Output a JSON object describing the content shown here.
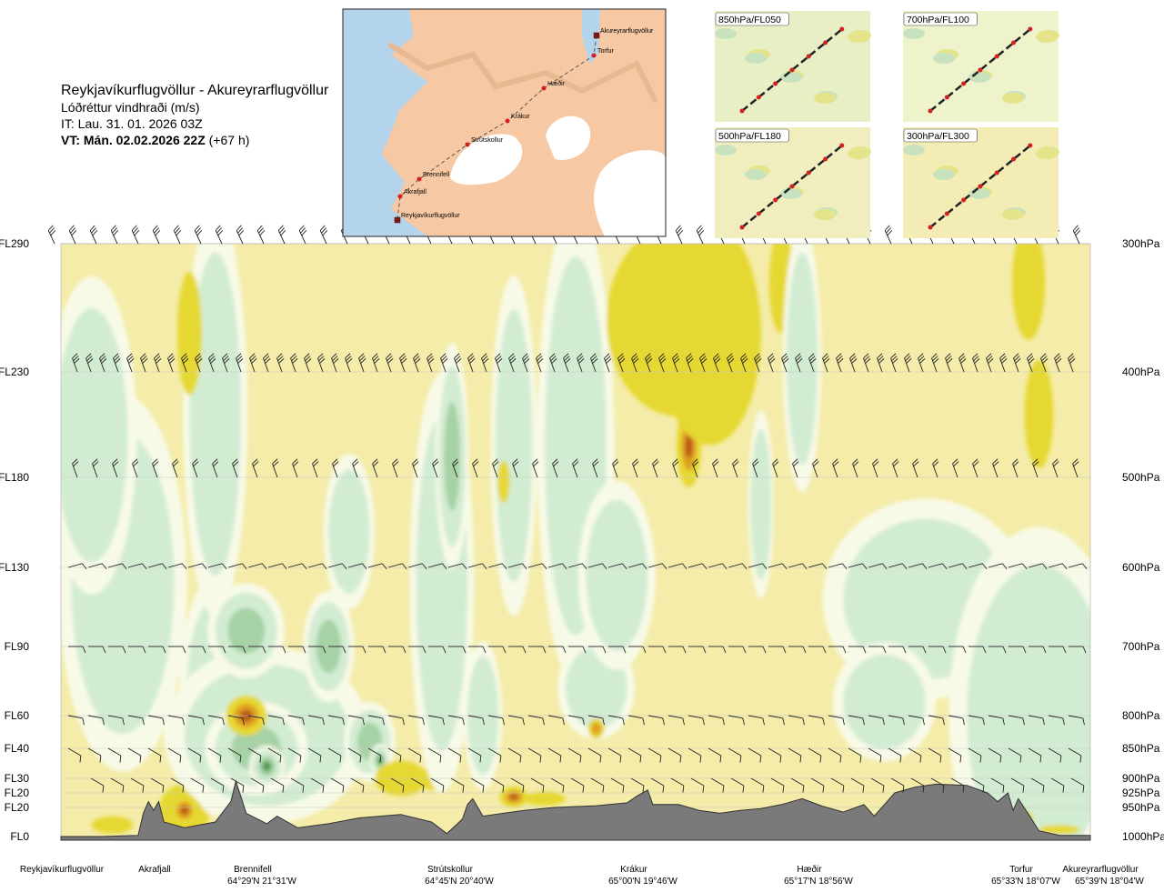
{
  "header": {
    "route": "Reykjavíkurflugvöllur - Akureyrarflugvöllur",
    "field": "Lóðréttur vindhraði (m/s)",
    "issue_time": "IT: Lau. 31. 01. 2026 03Z",
    "valid_time_label": "VT: Mán. 02.02.2026 22Z",
    "lead": "(+67 h)"
  },
  "inset_map": {
    "points": [
      "Akureyrarflugvöllur",
      "Torfur",
      "Hæðir",
      "Krákur",
      "Strútskollur",
      "Brennifell",
      "Akrafjall",
      "Reykjavíkurflugvöllur"
    ]
  },
  "small_maps": [
    {
      "label": "850hPa/FL050"
    },
    {
      "label": "700hPa/FL100"
    },
    {
      "label": "500hPa/FL180"
    },
    {
      "label": "300hPa/FL300"
    }
  ],
  "colors": {
    "background": "#f4eca8",
    "strong_up": "#e6d832",
    "very_strong_up": "#e0a020",
    "extreme_up": "#b85a1a",
    "weak_down": "#f8fae8",
    "down": "#d2ecd2",
    "strong_down": "#a6d2a6",
    "very_strong_down": "#4e9a4e",
    "terrain": "#7a7a7a"
  },
  "chart_data": {
    "type": "heatmap",
    "title": "Lóðréttur vindhraði (m/s)",
    "x_points": [
      {
        "name": "Reykjavíkurflugvöllur",
        "coord": ""
      },
      {
        "name": "Akrafjall",
        "coord": ""
      },
      {
        "name": "Brennifell",
        "coord": "64°29'N 21°31'W"
      },
      {
        "name": "Strútskollur",
        "coord": "64°45'N 20°40'W"
      },
      {
        "name": "Krákur",
        "coord": "65°00'N 19°46'W"
      },
      {
        "name": "Hæðir",
        "coord": "65°17'N 18°56'W"
      },
      {
        "name": "Torfur",
        "coord": "65°33'N 18°07'W"
      },
      {
        "name": "Akureyrarflugvöllur",
        "coord": "65°39'N 18°04'W"
      }
    ],
    "levels_left": [
      "FL290",
      "FL230",
      "FL180",
      "FL130",
      "FL90",
      "FL60",
      "FL40",
      "FL30",
      "FL20",
      "FL20",
      "FL0"
    ],
    "levels_right": [
      "300hPa",
      "400hPa",
      "500hPa",
      "600hPa",
      "700hPa",
      "800hPa",
      "850hPa",
      "900hPa",
      "925hPa",
      "950hPa",
      "1000hPa"
    ],
    "pressure_hpa": [
      300,
      400,
      500,
      600,
      700,
      800,
      850,
      900,
      925,
      950,
      1000
    ],
    "terrain_profile": [
      [
        0,
        1000
      ],
      [
        0.04,
        1000
      ],
      [
        0.075,
        998
      ],
      [
        0.08,
        960
      ],
      [
        0.085,
        940
      ],
      [
        0.09,
        955
      ],
      [
        0.095,
        940
      ],
      [
        0.1,
        975
      ],
      [
        0.12,
        985
      ],
      [
        0.15,
        975
      ],
      [
        0.165,
        940
      ],
      [
        0.17,
        905
      ],
      [
        0.18,
        960
      ],
      [
        0.2,
        978
      ],
      [
        0.21,
        965
      ],
      [
        0.23,
        985
      ],
      [
        0.26,
        978
      ],
      [
        0.29,
        968
      ],
      [
        0.33,
        962
      ],
      [
        0.36,
        975
      ],
      [
        0.375,
        995
      ],
      [
        0.39,
        970
      ],
      [
        0.395,
        945
      ],
      [
        0.4,
        935
      ],
      [
        0.41,
        965
      ],
      [
        0.43,
        960
      ],
      [
        0.45,
        955
      ],
      [
        0.48,
        950
      ],
      [
        0.52,
        947
      ],
      [
        0.55,
        942
      ],
      [
        0.56,
        930
      ],
      [
        0.57,
        920
      ],
      [
        0.575,
        945
      ],
      [
        0.6,
        945
      ],
      [
        0.62,
        955
      ],
      [
        0.64,
        960
      ],
      [
        0.66,
        955
      ],
      [
        0.68,
        952
      ],
      [
        0.7,
        945
      ],
      [
        0.72,
        935
      ],
      [
        0.74,
        948
      ],
      [
        0.76,
        958
      ],
      [
        0.78,
        945
      ],
      [
        0.79,
        965
      ],
      [
        0.8,
        945
      ],
      [
        0.81,
        925
      ],
      [
        0.83,
        915
      ],
      [
        0.85,
        910
      ],
      [
        0.88,
        912
      ],
      [
        0.9,
        925
      ],
      [
        0.91,
        940
      ],
      [
        0.92,
        925
      ],
      [
        0.925,
        955
      ],
      [
        0.93,
        935
      ],
      [
        0.94,
        962
      ],
      [
        0.95,
        990
      ],
      [
        0.97,
        998
      ],
      [
        1.0,
        998
      ]
    ],
    "cells": [
      {
        "x": 0.12,
        "p": 955,
        "rx": 0.025,
        "rp": 45,
        "w": 1.5
      },
      {
        "x": 0.12,
        "p": 955,
        "rx": 0.013,
        "rp": 25,
        "w": 3
      },
      {
        "x": 0.15,
        "p": 770,
        "rx": 0.028,
        "rp": 140,
        "w": -0.8
      },
      {
        "x": 0.16,
        "p": 800,
        "rx": 0.012,
        "rp": 50,
        "w": 1.2
      },
      {
        "x": 0.2,
        "p": 830,
        "rx": 0.08,
        "rp": 110,
        "w": -0.9
      },
      {
        "x": 0.19,
        "p": 850,
        "rx": 0.04,
        "rp": 60,
        "w": -1.5
      },
      {
        "x": 0.2,
        "p": 880,
        "rx": 0.014,
        "rp": 28,
        "w": -2.2
      },
      {
        "x": 0.15,
        "p": 440,
        "rx": 0.025,
        "rp": 160,
        "w": -0.8
      },
      {
        "x": 0.125,
        "p": 370,
        "rx": 0.012,
        "rp": 50,
        "w": 0.8
      },
      {
        "x": 0.18,
        "p": 800,
        "rx": 0.02,
        "rp": 30,
        "w": 2.5
      },
      {
        "x": 0.06,
        "p": 620,
        "rx": 0.05,
        "rp": 180,
        "w": -0.6
      },
      {
        "x": 0.03,
        "p": 460,
        "rx": 0.035,
        "rp": 120,
        "w": -0.5
      },
      {
        "x": 0.18,
        "p": 680,
        "rx": 0.03,
        "rp": 50,
        "w": -1.3
      },
      {
        "x": 0.26,
        "p": 700,
        "rx": 0.02,
        "rp": 60,
        "w": -1.2
      },
      {
        "x": 0.3,
        "p": 840,
        "rx": 0.02,
        "rp": 50,
        "w": -1.6
      },
      {
        "x": 0.31,
        "p": 870,
        "rx": 0.008,
        "rp": 22,
        "w": -3
      },
      {
        "x": 0.33,
        "p": 900,
        "rx": 0.025,
        "rp": 30,
        "w": 1.5
      },
      {
        "x": 0.36,
        "p": 900,
        "rx": 0.012,
        "rp": 20,
        "w": 1.4
      },
      {
        "x": 0.37,
        "p": 620,
        "rx": 0.025,
        "rp": 200,
        "w": -0.7
      },
      {
        "x": 0.38,
        "p": 480,
        "rx": 0.013,
        "rp": 90,
        "w": -1
      },
      {
        "x": 0.44,
        "p": 470,
        "rx": 0.018,
        "rp": 130,
        "w": -0.9
      },
      {
        "x": 0.43,
        "p": 505,
        "rx": 0.006,
        "rp": 22,
        "w": 1.3
      },
      {
        "x": 0.41,
        "p": 800,
        "rx": 0.015,
        "rp": 90,
        "w": -0.8
      },
      {
        "x": 0.44,
        "p": 932,
        "rx": 0.014,
        "rp": 18,
        "w": 2.5
      },
      {
        "x": 0.47,
        "p": 935,
        "rx": 0.02,
        "rp": 12,
        "w": 1.3
      },
      {
        "x": 0.5,
        "p": 470,
        "rx": 0.03,
        "rp": 200,
        "w": -0.8
      },
      {
        "x": 0.52,
        "p": 760,
        "rx": 0.03,
        "rp": 60,
        "w": -0.7
      },
      {
        "x": 0.52,
        "p": 820,
        "rx": 0.008,
        "rp": 15,
        "w": 1.6
      },
      {
        "x": 0.54,
        "p": 610,
        "rx": 0.03,
        "rp": 90,
        "w": -0.7
      },
      {
        "x": 0.6,
        "p": 360,
        "rx": 0.07,
        "rp": 100,
        "w": 1.2
      },
      {
        "x": 0.61,
        "p": 470,
        "rx": 0.012,
        "rp": 40,
        "w": 2.3
      },
      {
        "x": 0.63,
        "p": 370,
        "rx": 0.05,
        "rp": 120,
        "w": 1.1
      },
      {
        "x": 0.7,
        "p": 330,
        "rx": 0.012,
        "rp": 50,
        "w": 1.2
      },
      {
        "x": 0.72,
        "p": 390,
        "rx": 0.015,
        "rp": 90,
        "w": -0.6
      },
      {
        "x": 0.68,
        "p": 530,
        "rx": 0.01,
        "rp": 80,
        "w": -0.6
      },
      {
        "x": 0.84,
        "p": 640,
        "rx": 0.08,
        "rp": 100,
        "w": -0.6
      },
      {
        "x": 0.8,
        "p": 780,
        "rx": 0.04,
        "rp": 70,
        "w": -0.6
      },
      {
        "x": 0.95,
        "p": 800,
        "rx": 0.07,
        "rp": 220,
        "w": -0.6
      },
      {
        "x": 0.94,
        "p": 330,
        "rx": 0.016,
        "rp": 60,
        "w": 1.1
      },
      {
        "x": 0.95,
        "p": 440,
        "rx": 0.014,
        "rp": 50,
        "w": 1
      },
      {
        "x": 0.93,
        "p": 972,
        "rx": 0.015,
        "rp": 20,
        "w": 2.5
      },
      {
        "x": 0.97,
        "p": 988,
        "rx": 0.02,
        "rp": 8,
        "w": 1.4
      },
      {
        "x": 0.05,
        "p": 980,
        "rx": 0.02,
        "rp": 15,
        "w": 0.8
      },
      {
        "x": 0.28,
        "p": 560,
        "rx": 0.02,
        "rp": 70,
        "w": -0.5
      }
    ]
  }
}
